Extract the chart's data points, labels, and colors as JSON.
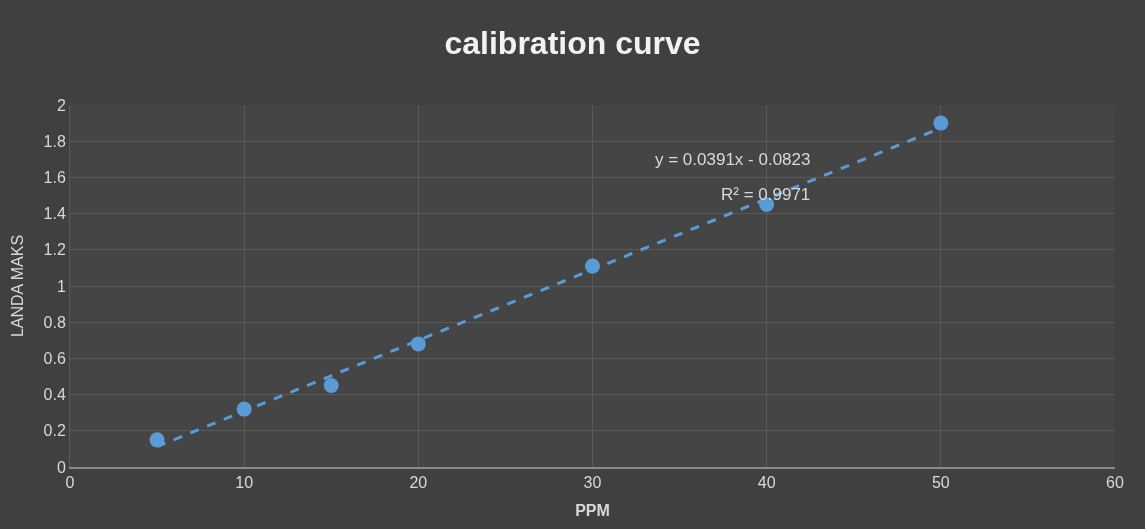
{
  "chart_data": {
    "type": "scatter",
    "title": "calibration curve",
    "xlabel": "PPM",
    "ylabel": "LANDA MAKS",
    "x": [
      5,
      10,
      15,
      20,
      30,
      40,
      50
    ],
    "series": [
      {
        "color": "#5b9bd5",
        "values": [
          0.15,
          0.32,
          0.45,
          0.68,
          1.11,
          1.45,
          1.9
        ],
        "marker": "circle"
      },
      {
        "type": "line",
        "color": "#5b9bd5",
        "x": [
          5,
          50
        ],
        "values": [
          0.113,
          1.873
        ],
        "line_style": "dashed",
        "marker": "none"
      }
    ],
    "annotations": [
      "y = 0.0391x - 0.0823",
      "R² = 0.9971"
    ],
    "xlim": [
      0,
      60
    ],
    "xticks": [
      0,
      10,
      20,
      30,
      40,
      50,
      60
    ],
    "ylim": [
      0,
      2
    ],
    "yticks": [
      0,
      0.2,
      0.4,
      0.6,
      0.8,
      1,
      1.2,
      1.4,
      1.6,
      1.8,
      2
    ],
    "grid": true
  }
}
